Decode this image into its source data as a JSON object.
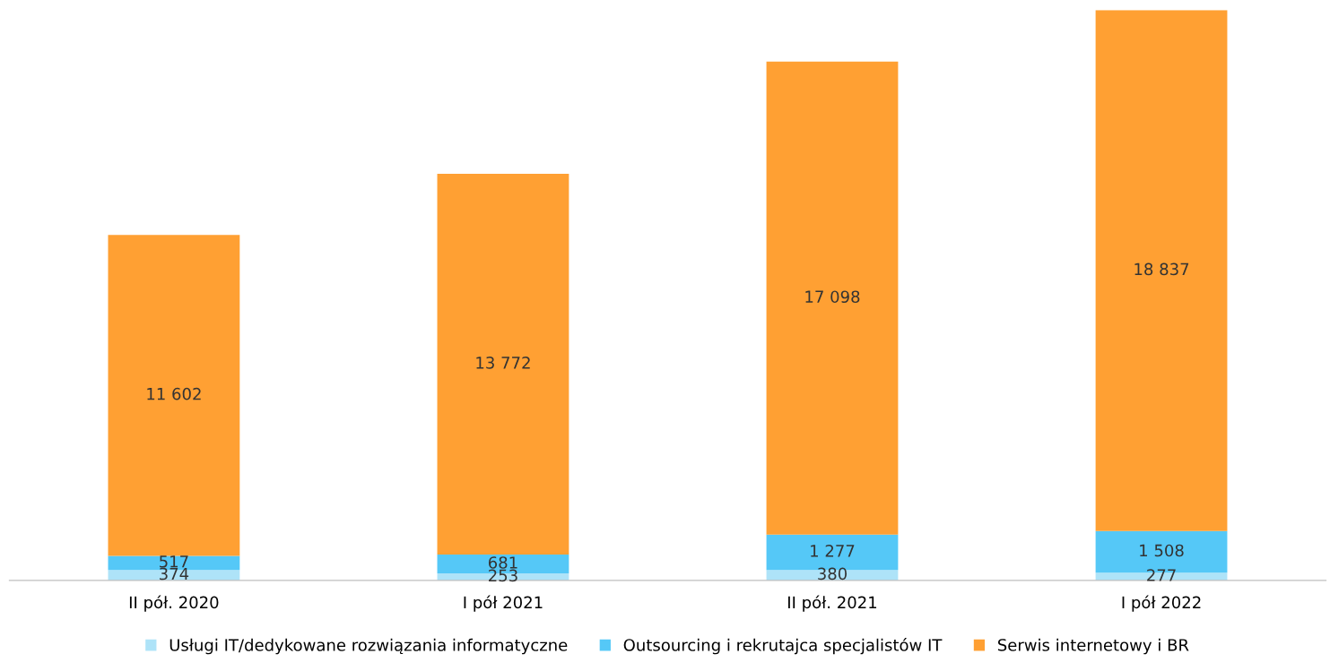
{
  "chart_data": {
    "type": "bar",
    "stacked": true,
    "categories": [
      "II pół. 2020",
      "I pół 2021",
      "II pół. 2021",
      "I pół 2022"
    ],
    "series": [
      {
        "name": "Usługi IT/dedykowane rozwiązania informatyczne",
        "color": "#aee3f8",
        "values": [
          374,
          253,
          380,
          277
        ],
        "value_labels": [
          "374",
          "253",
          "380",
          "277"
        ]
      },
      {
        "name": "Outsourcing i rekrutajca specjalistów IT",
        "color": "#55c8f7",
        "values": [
          517,
          681,
          1277,
          1508
        ],
        "value_labels": [
          "517",
          "681",
          "1 277",
          "1 508"
        ]
      },
      {
        "name": "Serwis internetowy i BR",
        "color": "#ffa033",
        "values": [
          11602,
          13772,
          17098,
          18837
        ],
        "value_labels": [
          "11 602",
          "13 772",
          "17 098",
          "18 837"
        ]
      }
    ],
    "legend": "bottom",
    "grid": false
  }
}
